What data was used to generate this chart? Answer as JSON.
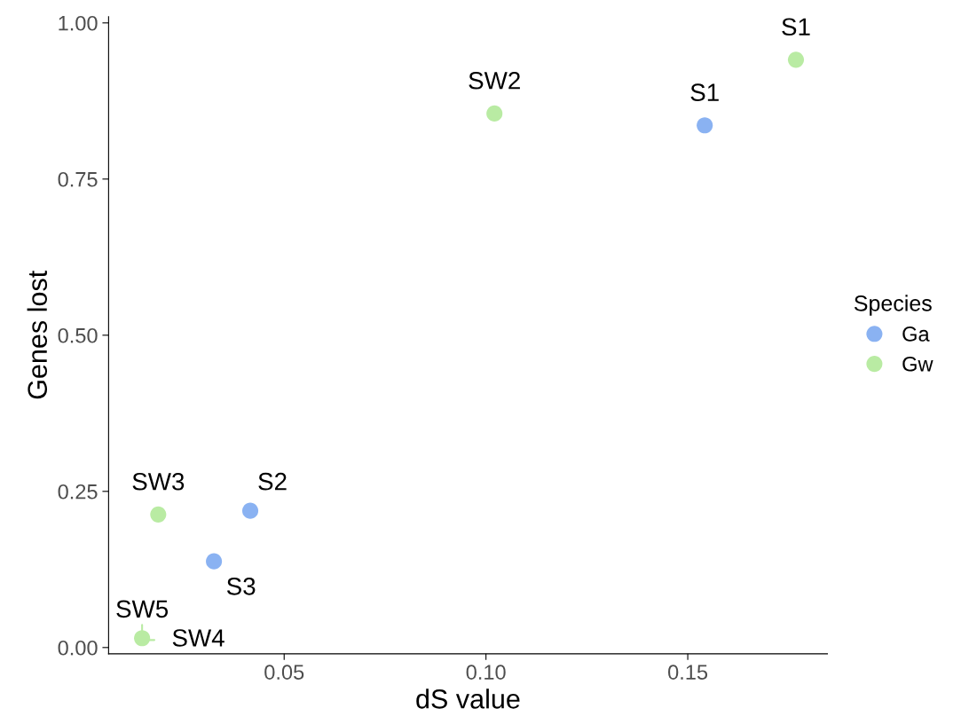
{
  "chart_data": {
    "type": "scatter",
    "xlabel": "dS value",
    "ylabel": "Genes lost",
    "legend_title": "Species",
    "series": [
      {
        "name": "Ga",
        "color": "#8ab2f2",
        "x": [
          0.1542,
          0.0416,
          0.0326
        ],
        "values": [
          0.836,
          0.219,
          0.138
        ]
      },
      {
        "name": "Gw",
        "color": "#b9eba3",
        "x": [
          0.1768,
          0.1021,
          0.0188,
          0.015,
          0.0148
        ],
        "values": [
          0.941,
          0.855,
          0.213,
          null,
          0.015
        ]
      }
    ],
    "annotations": [
      {
        "text": "S1",
        "x": 0.1542,
        "y": 0.836
      },
      {
        "text": "S2",
        "x": 0.0416,
        "y": 0.219
      },
      {
        "text": "S3",
        "x": 0.0326,
        "y": 0.138
      },
      {
        "text": "S1",
        "x": 0.1768,
        "y": 0.941
      },
      {
        "text": "SW2",
        "x": 0.1021,
        "y": 0.855
      },
      {
        "text": "SW3",
        "x": 0.0188,
        "y": 0.213
      },
      {
        "text": "SW4",
        "x": 0.015,
        "y": 0.012
      },
      {
        "text": "SW5",
        "x": 0.0148,
        "y": 0.015
      }
    ],
    "xlim": [
      0.0065,
      0.1846
    ],
    "ylim": [
      -0.01,
      1.01
    ],
    "xticks": [
      {
        "value": 0.05,
        "label": "0.05"
      },
      {
        "value": 0.1,
        "label": "0.10"
      },
      {
        "value": 0.15,
        "label": "0.15"
      }
    ],
    "yticks": [
      {
        "value": 0,
        "label": "0.00"
      },
      {
        "value": 0.25,
        "label": "0.25"
      },
      {
        "value": 0.5,
        "label": "0.50"
      },
      {
        "value": 0.75,
        "label": "0.75"
      },
      {
        "value": 1,
        "label": "1.00"
      }
    ],
    "grid": false,
    "legend": "right",
    "marker": "circle"
  }
}
